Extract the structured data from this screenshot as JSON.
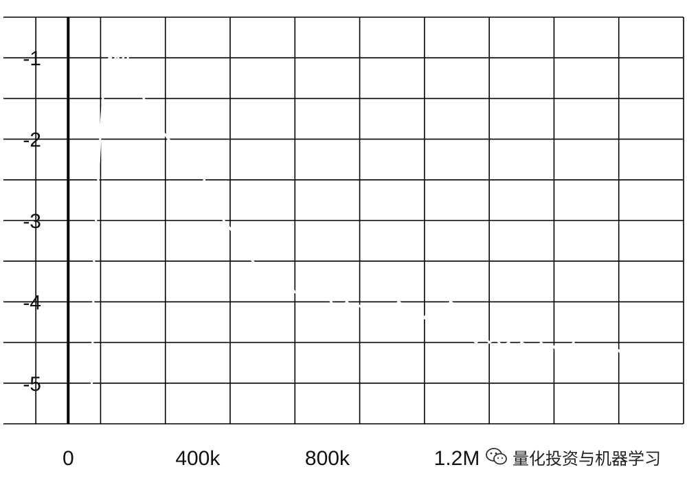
{
  "chart_data": {
    "type": "line",
    "title": "",
    "xlabel": "",
    "ylabel": "",
    "xlim": [
      -200000,
      1900000
    ],
    "ylim": [
      -5.5,
      -0.5
    ],
    "grid": true,
    "x_ticks": [
      {
        "value": 0,
        "label": "0"
      },
      {
        "value": 400000,
        "label": "400k"
      },
      {
        "value": 800000,
        "label": "800k"
      },
      {
        "value": 1200000,
        "label": "1.2M"
      }
    ],
    "y_ticks": [
      {
        "value": -1,
        "label": "-1"
      },
      {
        "value": -2,
        "label": "-2"
      },
      {
        "value": -3,
        "label": "-3"
      },
      {
        "value": -4,
        "label": "-4"
      },
      {
        "value": -5,
        "label": "-5"
      }
    ],
    "series": [
      {
        "color": "#ffffff",
        "x": [
          70000,
          75000,
          80000,
          90000,
          100000,
          110000,
          120000,
          130000,
          140000,
          150000,
          160000,
          170000,
          180000,
          190000,
          200000,
          210000,
          220000,
          240000,
          260000,
          280000,
          300000,
          320000,
          340000,
          360000,
          380000,
          400000,
          420000,
          440000,
          460000,
          480000,
          500000,
          520000,
          540000,
          560000,
          580000,
          600000,
          620000,
          640000,
          660000,
          680000,
          700000,
          720000,
          740000,
          760000,
          780000,
          800000,
          820000,
          840000,
          860000,
          880000,
          900000,
          920000,
          940000,
          960000,
          980000,
          1000000,
          1020000,
          1040000,
          1060000,
          1080000,
          1100000,
          1120000,
          1140000,
          1160000,
          1180000,
          1200000,
          1220000,
          1240000,
          1260000,
          1280000,
          1300000,
          1320000,
          1340000,
          1360000,
          1380000,
          1400000,
          1420000,
          1440000,
          1460000,
          1480000,
          1500000,
          1520000,
          1540000,
          1560000,
          1580000,
          1600000,
          1620000,
          1640000,
          1660000,
          1680000,
          1700000,
          1720000,
          1740000,
          1760000,
          1780000,
          1800000,
          1820000,
          1840000,
          1860000,
          1880000
        ],
        "values": [
          -5.45,
          -4.6,
          -3.4,
          -2.7,
          -1.9,
          -1.35,
          -1.05,
          -0.98,
          -1.12,
          -0.92,
          -1.1,
          -1.0,
          -0.85,
          -1.2,
          -1.05,
          -1.25,
          -1.4,
          -1.55,
          -1.7,
          -1.85,
          -1.95,
          -2.05,
          -2.2,
          -2.3,
          -2.4,
          -2.35,
          -2.5,
          -2.7,
          -2.8,
          -3.0,
          -3.1,
          -3.2,
          -3.3,
          -3.45,
          -3.55,
          -3.6,
          -3.68,
          -3.75,
          -3.8,
          -3.78,
          -3.88,
          -3.92,
          -3.85,
          -3.95,
          -3.97,
          -3.93,
          -4.05,
          -4.1,
          -4.0,
          -4.08,
          -4.05,
          -4.12,
          -4.1,
          -4.15,
          -4.05,
          -4.1,
          -4.0,
          -4.05,
          -4.15,
          -4.1,
          -4.2,
          -4.05,
          -4.1,
          -4.15,
          -4.0,
          -4.05,
          -4.3,
          -4.45,
          -4.5,
          -4.4,
          -4.5,
          -4.45,
          -4.55,
          -4.5,
          -4.6,
          -4.5,
          -4.55,
          -4.62,
          -4.5,
          -4.6,
          -4.55,
          -4.68,
          -4.6,
          -4.5,
          -4.65,
          -4.7,
          -4.55,
          -4.6,
          -4.68,
          -4.55,
          -4.6,
          -4.7,
          -4.65,
          -4.6,
          -4.68,
          -4.62,
          -4.7,
          -4.6,
          -4.72,
          -4.65
        ]
      }
    ]
  },
  "watermark": {
    "icon": "wechat-icon",
    "text": "量化投资与机器学习"
  }
}
